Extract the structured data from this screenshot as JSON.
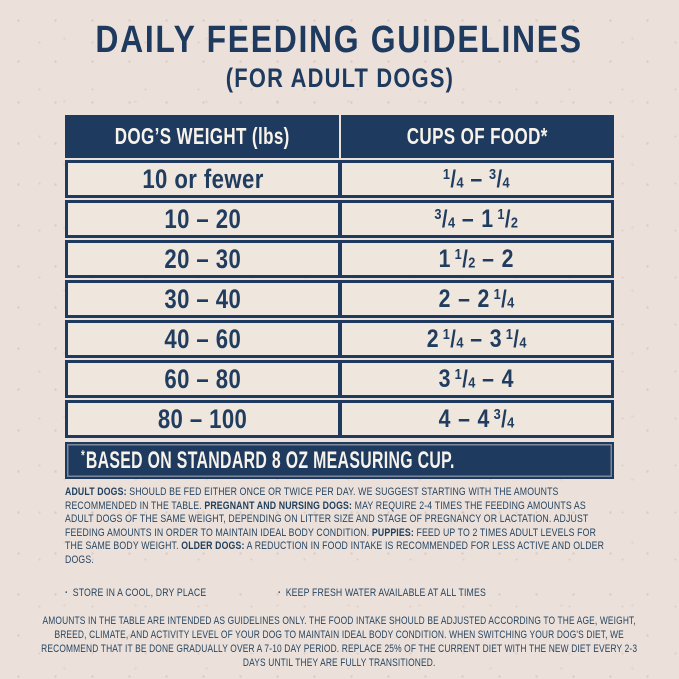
{
  "page": {
    "title": "DAILY FEEDING GUIDELINES",
    "subtitle": "(FOR ADULT DOGS)"
  },
  "colors": {
    "navy": "#1e3a5e",
    "background_cream": "#ebe1da",
    "row_cream": "#efe6de",
    "light_text": "#f7f2ea"
  },
  "table": {
    "columns": [
      "DOG’S WEIGHT (lbs)",
      "CUPS OF FOOD*"
    ],
    "rows": [
      {
        "weight": "10 or fewer",
        "cups_text": "1/4 – 3/4",
        "cups": [
          {
            "f": [
              "1",
              "4"
            ]
          },
          {
            "d": "–"
          },
          {
            "f": [
              "3",
              "4"
            ]
          }
        ]
      },
      {
        "weight": "10 – 20",
        "cups_text": "3/4 – 1 1/2",
        "cups": [
          {
            "f": [
              "3",
              "4"
            ]
          },
          {
            "d": "–"
          },
          {
            "w": "1"
          },
          {
            "f": [
              "1",
              "2"
            ]
          }
        ]
      },
      {
        "weight": "20 – 30",
        "cups_text": "1 1/2 – 2",
        "cups": [
          {
            "w": "1"
          },
          {
            "f": [
              "1",
              "2"
            ]
          },
          {
            "d": "–"
          },
          {
            "w": "2"
          }
        ]
      },
      {
        "weight": "30 – 40",
        "cups_text": "2 – 2 1/4",
        "cups": [
          {
            "w": "2"
          },
          {
            "d": "–"
          },
          {
            "w": "2"
          },
          {
            "f": [
              "1",
              "4"
            ]
          }
        ]
      },
      {
        "weight": "40 – 60",
        "cups_text": "2 1/4 – 3 1/4",
        "cups": [
          {
            "w": "2"
          },
          {
            "f": [
              "1",
              "4"
            ]
          },
          {
            "d": "–"
          },
          {
            "w": "3"
          },
          {
            "f": [
              "1",
              "4"
            ]
          }
        ]
      },
      {
        "weight": "60 – 80",
        "cups_text": "3 1/4 – 4",
        "cups": [
          {
            "w": "3"
          },
          {
            "f": [
              "1",
              "4"
            ]
          },
          {
            "d": "–"
          },
          {
            "w": "4"
          }
        ]
      },
      {
        "weight": "80 – 100",
        "cups_text": "4 – 4 3/4",
        "cups": [
          {
            "w": "4"
          },
          {
            "d": "–"
          },
          {
            "w": "4"
          },
          {
            "f": [
              "3",
              "4"
            ]
          }
        ]
      }
    ],
    "footnote": {
      "asterisk": "*",
      "text": "BASED ON STANDARD 8 OZ MEASURING CUP."
    }
  },
  "notes": {
    "feeding_segments": [
      {
        "bold": true,
        "text": "ADULT DOGS:"
      },
      {
        "bold": false,
        "text": " SHOULD BE FED EITHER ONCE OR TWICE PER DAY.  WE SUGGEST STARTING WITH THE AMOUNTS RECOMMENDED IN THE TABLE. "
      },
      {
        "bold": true,
        "text": "PREGNANT AND NURSING DOGS:"
      },
      {
        "bold": false,
        "text": " MAY REQUIRE 2-4 TIMES THE FEEDING AMOUNTS AS ADULT DOGS OF THE SAME WEIGHT, DEPENDING ON LITTER SIZE AND STAGE OF PREGNANCY OR LACTATION. ADJUST FEEDING AMOUNTS IN ORDER TO MAINTAIN IDEAL BODY CONDITION.  "
      },
      {
        "bold": true,
        "text": "PUPPIES:"
      },
      {
        "bold": false,
        "text": " FEED UP TO 2 TIMES ADULT LEVELS FOR THE SAME BODY WEIGHT.  "
      },
      {
        "bold": true,
        "text": "OLDER DOGS:"
      },
      {
        "bold": false,
        "text": " A REDUCTION IN FOOD INTAKE IS RECOMMENDED FOR LESS ACTIVE AND OLDER DOGS."
      }
    ],
    "bullet_glyph": "·",
    "bullets": [
      "STORE IN A COOL, DRY PLACE",
      "KEEP FRESH WATER AVAILABLE AT ALL TIMES"
    ],
    "disclaimer": "AMOUNTS IN THE TABLE ARE INTENDED AS GUIDELINES ONLY. THE FOOD INTAKE SHOULD BE ADJUSTED ACCORDING TO THE AGE, WEIGHT, BREED, CLIMATE, AND ACTIVITY LEVEL OF YOUR DOG TO MAINTAIN IDEAL BODY CONDITION. WHEN SWITCHING YOUR DOG'S DIET, WE RECOMMEND THAT IT BE DONE GRADUALLY OVER A 7-10 DAY PERIOD. REPLACE 25% OF THE CURRENT DIET WITH THE NEW DIET EVERY 2-3 DAYS UNTIL THEY ARE FULLY TRANSITIONED."
  }
}
